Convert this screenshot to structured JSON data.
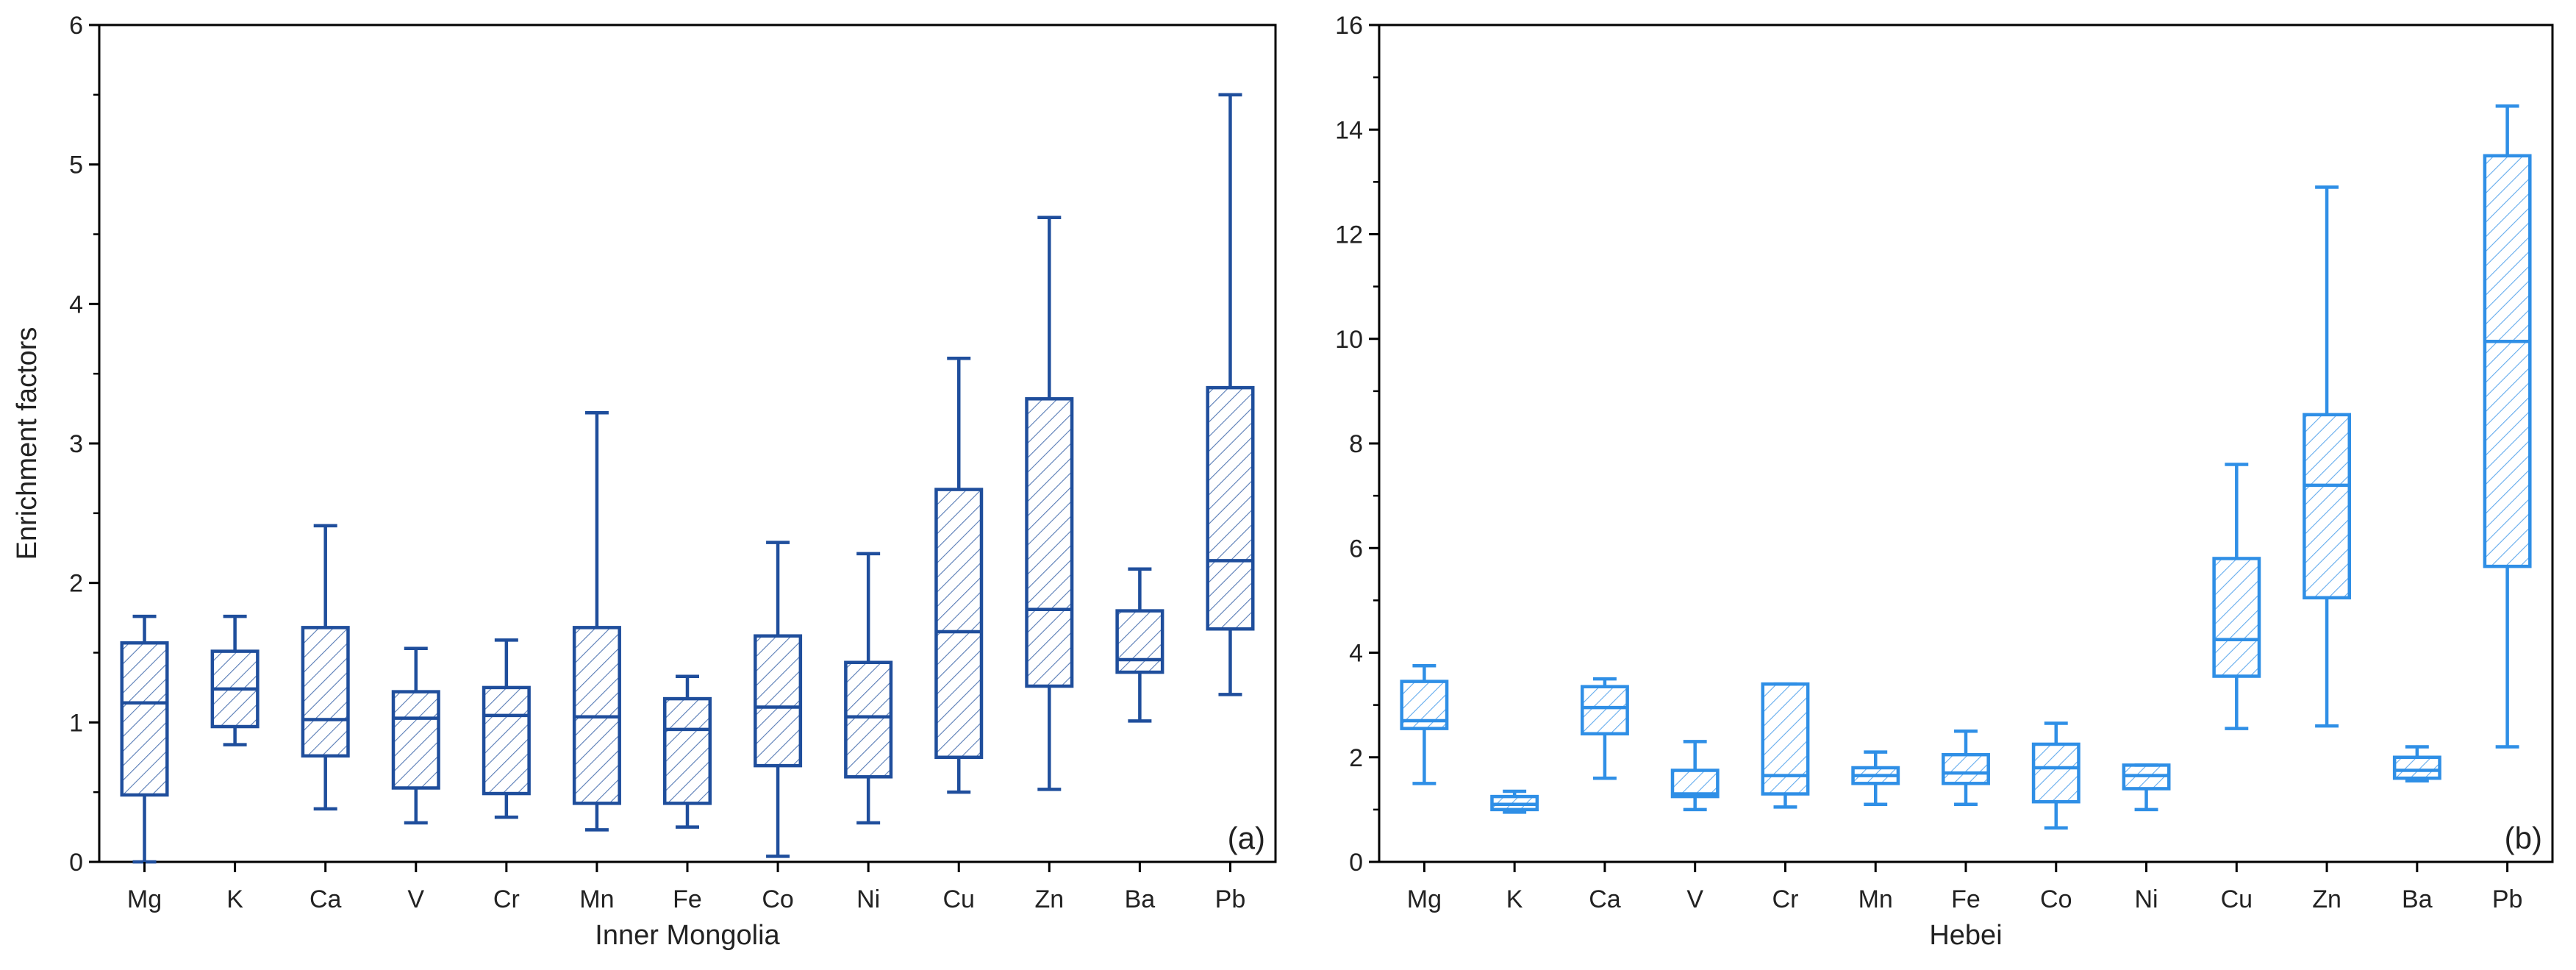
{
  "chart_data": [
    {
      "type": "box",
      "panel_label": "(a)",
      "xlabel": "Inner Mongolia",
      "ylabel": "Enrichment factors",
      "ylim": [
        0,
        6
      ],
      "yticks": [
        0,
        1,
        2,
        3,
        4,
        5,
        6
      ],
      "color": "#1f4e9c",
      "categories": [
        "Mg",
        "K",
        "Ca",
        "V",
        "Cr",
        "Mn",
        "Fe",
        "Co",
        "Ni",
        "Cu",
        "Zn",
        "Ba",
        "Pb"
      ],
      "boxes": [
        {
          "min": 0.0,
          "q1": 0.48,
          "median": 1.14,
          "q3": 1.57,
          "max": 1.76
        },
        {
          "min": 0.84,
          "q1": 0.97,
          "median": 1.24,
          "q3": 1.51,
          "max": 1.76
        },
        {
          "min": 0.38,
          "q1": 0.76,
          "median": 1.02,
          "q3": 1.68,
          "max": 2.41
        },
        {
          "min": 0.28,
          "q1": 0.53,
          "median": 1.03,
          "q3": 1.22,
          "max": 1.53
        },
        {
          "min": 0.32,
          "q1": 0.49,
          "median": 1.05,
          "q3": 1.25,
          "max": 1.59
        },
        {
          "min": 0.23,
          "q1": 0.42,
          "median": 1.04,
          "q3": 1.68,
          "max": 3.22
        },
        {
          "min": 0.25,
          "q1": 0.42,
          "median": 0.95,
          "q3": 1.17,
          "max": 1.33
        },
        {
          "min": 0.04,
          "q1": 0.69,
          "median": 1.11,
          "q3": 1.62,
          "max": 2.29
        },
        {
          "min": 0.28,
          "q1": 0.61,
          "median": 1.04,
          "q3": 1.43,
          "max": 2.21
        },
        {
          "min": 0.5,
          "q1": 0.75,
          "median": 1.65,
          "q3": 2.67,
          "max": 3.61
        },
        {
          "min": 0.52,
          "q1": 1.26,
          "median": 1.81,
          "q3": 3.32,
          "max": 4.62
        },
        {
          "min": 1.01,
          "q1": 1.36,
          "median": 1.45,
          "q3": 1.8,
          "max": 2.1
        },
        {
          "min": 1.2,
          "q1": 1.67,
          "median": 2.16,
          "q3": 3.4,
          "max": 5.5
        }
      ]
    },
    {
      "type": "box",
      "panel_label": "(b)",
      "xlabel": "Hebei",
      "ylabel": "",
      "ylim": [
        0,
        16
      ],
      "yticks": [
        0,
        2,
        4,
        6,
        8,
        10,
        12,
        14,
        16
      ],
      "color": "#2f8fe6",
      "categories": [
        "Mg",
        "K",
        "Ca",
        "V",
        "Cr",
        "Mn",
        "Fe",
        "Co",
        "Ni",
        "Cu",
        "Zn",
        "Ba",
        "Pb"
      ],
      "boxes": [
        {
          "min": 1.5,
          "q1": 2.55,
          "median": 2.7,
          "q3": 3.45,
          "max": 3.75
        },
        {
          "min": 0.95,
          "q1": 1.0,
          "median": 1.1,
          "q3": 1.25,
          "max": 1.35
        },
        {
          "min": 1.6,
          "q1": 2.45,
          "median": 2.95,
          "q3": 3.35,
          "max": 3.5
        },
        {
          "min": 1.0,
          "q1": 1.25,
          "median": 1.3,
          "q3": 1.75,
          "max": 2.3
        },
        {
          "min": 1.05,
          "q1": 1.3,
          "median": 1.65,
          "q3": 3.4,
          "max": 3.4
        },
        {
          "min": 1.1,
          "q1": 1.5,
          "median": 1.65,
          "q3": 1.8,
          "max": 2.1
        },
        {
          "min": 1.1,
          "q1": 1.5,
          "median": 1.7,
          "q3": 2.05,
          "max": 2.5
        },
        {
          "min": 0.65,
          "q1": 1.15,
          "median": 1.8,
          "q3": 2.25,
          "max": 2.65
        },
        {
          "min": 1.0,
          "q1": 1.4,
          "median": 1.65,
          "q3": 1.85,
          "max": 1.85
        },
        {
          "min": 2.55,
          "q1": 3.55,
          "median": 4.25,
          "q3": 5.8,
          "max": 7.6
        },
        {
          "min": 2.6,
          "q1": 5.05,
          "median": 7.2,
          "q3": 8.55,
          "max": 12.9
        },
        {
          "min": 1.55,
          "q1": 1.6,
          "median": 1.75,
          "q3": 2.0,
          "max": 2.2
        },
        {
          "min": 2.2,
          "q1": 5.65,
          "median": 9.95,
          "q3": 13.5,
          "max": 14.45
        }
      ]
    }
  ]
}
